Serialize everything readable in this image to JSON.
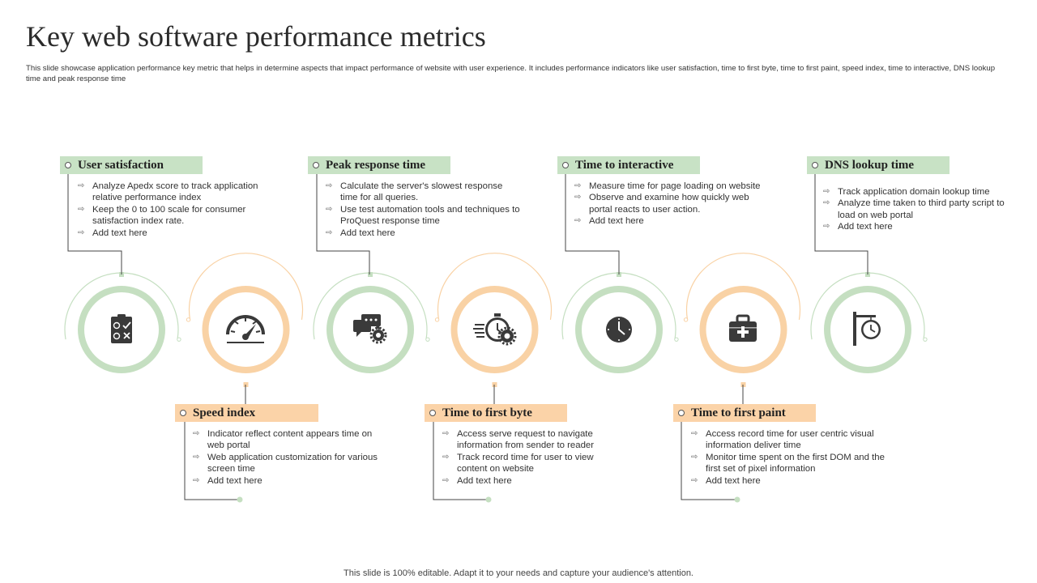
{
  "slide": {
    "title": "Key web software performance metrics",
    "subtitle": "This slide showcase application performance key metric that helps in determine aspects that impact performance of website with user experience. It includes performance indicators like user satisfaction, time to first byte, time to first paint, speed index, time to interactive, DNS lookup time and peak response time",
    "footer": "This slide is 100% editable. Adapt it to your needs and capture your audience's attention."
  },
  "colors": {
    "green": "#c8e2c5",
    "green_ring": "#c5dfc1",
    "orange": "#fbd3a8",
    "orange_ring": "#f9d2a5",
    "icon": "#3a3a3a"
  },
  "metrics": [
    {
      "title": "User satisfaction",
      "color": "green",
      "icon": "clipboard-checklist-icon",
      "bullets": [
        "Analyze Apedx score to track application relative performance index",
        "Keep the 0 to 100 scale for consumer satisfaction index rate.",
        "Add text here"
      ]
    },
    {
      "title": "Speed index",
      "color": "orange",
      "icon": "speedometer-gauge-icon",
      "bullets": [
        "Indicator reflect content appears time on web portal",
        "Web application customization for various screen time",
        "Add text here"
      ]
    },
    {
      "title": "Peak response time",
      "color": "green",
      "icon": "chat-bubbles-gear-icon",
      "bullets": [
        "Calculate the server's slowest response time for all queries.",
        "Use test automation tools and techniques to ProQuest response time",
        "Add text here"
      ]
    },
    {
      "title": "Time to first byte",
      "color": "orange",
      "icon": "stopwatch-gear-icon",
      "bullets": [
        "Access serve request to navigate information from sender to reader",
        "Track record time for user to view content on website",
        "Add text here"
      ]
    },
    {
      "title": "Time to interactive",
      "color": "green",
      "icon": "clock-icon",
      "bullets": [
        "Measure time for page loading on website",
        "Observe and examine how quickly web portal reacts to user action.",
        "Add text here"
      ]
    },
    {
      "title": "Time to first paint",
      "color": "orange",
      "icon": "first-aid-kit-icon",
      "bullets": [
        "Access record time for user centric visual information deliver time",
        "Monitor time spent on the first DOM and the first set of pixel information",
        "Add text here"
      ]
    },
    {
      "title": "DNS lookup time",
      "color": "green",
      "icon": "signpost-clock-icon",
      "bullets": [
        "Track application domain lookup time",
        "Analyze time taken to third party script to load on web portal",
        "Add text here"
      ]
    }
  ]
}
